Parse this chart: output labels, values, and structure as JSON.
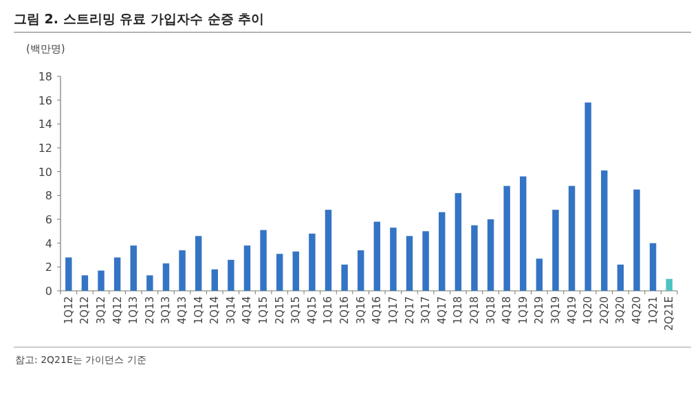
{
  "chart_data": {
    "type": "bar",
    "title": "그림 2. 스트리밍 유료 가입자수 순증 추이",
    "ylabel": "(백만명)",
    "categories": [
      "1Q12",
      "2Q12",
      "3Q12",
      "4Q12",
      "1Q13",
      "2Q13",
      "3Q13",
      "4Q13",
      "1Q14",
      "2Q14",
      "3Q14",
      "4Q14",
      "1Q15",
      "2Q15",
      "3Q15",
      "4Q15",
      "1Q16",
      "2Q16",
      "3Q16",
      "4Q16",
      "1Q17",
      "2Q17",
      "3Q17",
      "4Q17",
      "1Q18",
      "2Q18",
      "3Q18",
      "4Q18",
      "1Q19",
      "2Q19",
      "3Q19",
      "4Q19",
      "1Q20",
      "2Q20",
      "3Q20",
      "4Q20",
      "1Q21",
      "2Q21E"
    ],
    "values": [
      2.8,
      1.3,
      1.7,
      2.8,
      3.8,
      1.3,
      2.3,
      3.4,
      4.6,
      1.8,
      2.6,
      3.8,
      5.1,
      3.1,
      3.3,
      4.8,
      6.8,
      2.2,
      3.4,
      5.8,
      5.3,
      4.6,
      5.0,
      6.6,
      8.2,
      5.5,
      6.0,
      8.8,
      9.6,
      2.7,
      6.8,
      8.8,
      15.8,
      10.1,
      2.2,
      8.5,
      4.0,
      1.0
    ],
    "colors": [
      "#3474c4",
      "#3474c4",
      "#3474c4",
      "#3474c4",
      "#3474c4",
      "#3474c4",
      "#3474c4",
      "#3474c4",
      "#3474c4",
      "#3474c4",
      "#3474c4",
      "#3474c4",
      "#3474c4",
      "#3474c4",
      "#3474c4",
      "#3474c4",
      "#3474c4",
      "#3474c4",
      "#3474c4",
      "#3474c4",
      "#3474c4",
      "#3474c4",
      "#3474c4",
      "#3474c4",
      "#3474c4",
      "#3474c4",
      "#3474c4",
      "#3474c4",
      "#3474c4",
      "#3474c4",
      "#3474c4",
      "#3474c4",
      "#3474c4",
      "#3474c4",
      "#3474c4",
      "#3474c4",
      "#3474c4",
      "#4cc3c0"
    ],
    "ylim": [
      0,
      18
    ],
    "yticks": [
      0,
      2,
      4,
      6,
      8,
      10,
      12,
      14,
      16,
      18
    ],
    "grid": false,
    "annotations": [
      "참고: 2Q21E는 가이던스 기준"
    ]
  }
}
